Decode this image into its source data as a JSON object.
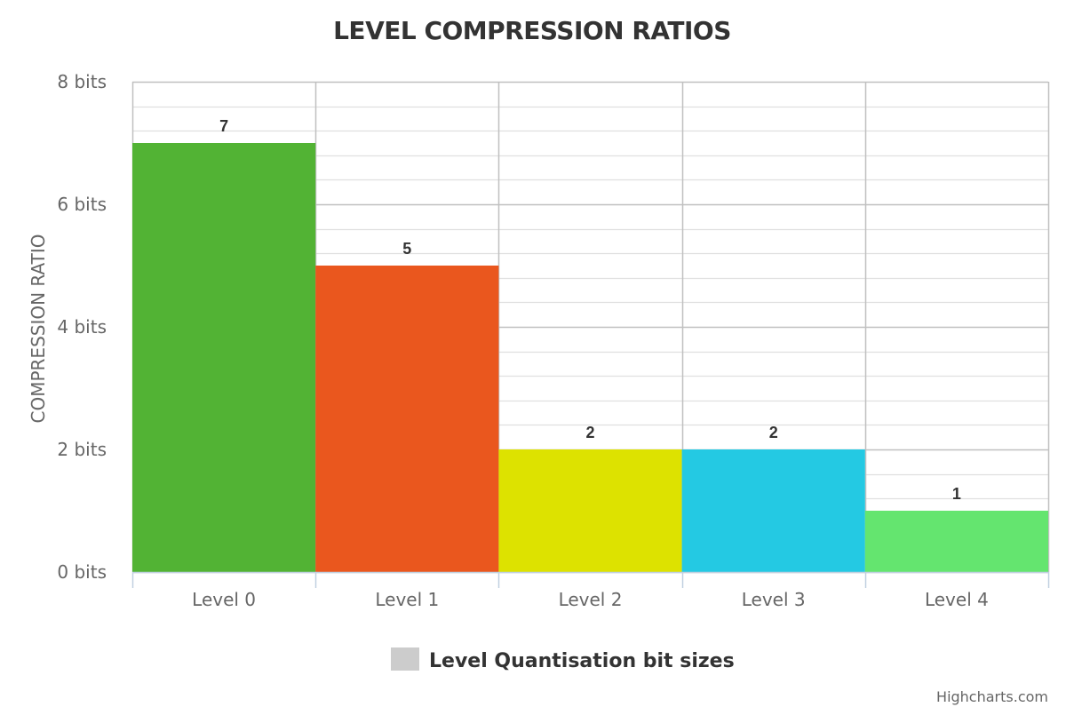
{
  "chart_data": {
    "type": "bar",
    "title": "LEVEL COMPRESSION RATIOS",
    "ylabel": "COMPRESSION RATIO",
    "xlabel": "",
    "categories": [
      "Level 0",
      "Level 1",
      "Level 2",
      "Level 3",
      "Level 4"
    ],
    "series": [
      {
        "name": "Level Quantisation bit sizes",
        "values": [
          7,
          5,
          2,
          2,
          1
        ],
        "colors": [
          "#52b334",
          "#ea571e",
          "#dde200",
          "#24c9e3",
          "#64e56f"
        ]
      }
    ],
    "ylim": [
      0,
      8
    ],
    "yticks": [
      0,
      2,
      4,
      6,
      8
    ],
    "ytick_suffix": " bits",
    "ytick_labels": [
      "0 bits",
      "2 bits",
      "4 bits",
      "6 bits",
      "8 bits"
    ],
    "data_labels": [
      "7",
      "5",
      "2",
      "2",
      "1"
    ],
    "grid": true,
    "legend": {
      "placement": "bottom-center",
      "label": "Level Quantisation bit sizes",
      "swatch_color": "#cccccc"
    },
    "credits": "Highcharts.com"
  },
  "colors": {
    "grid_major": "#c0c0c0",
    "grid_minor": "#e0e0e0",
    "axis_line": "#c0d0e0"
  }
}
